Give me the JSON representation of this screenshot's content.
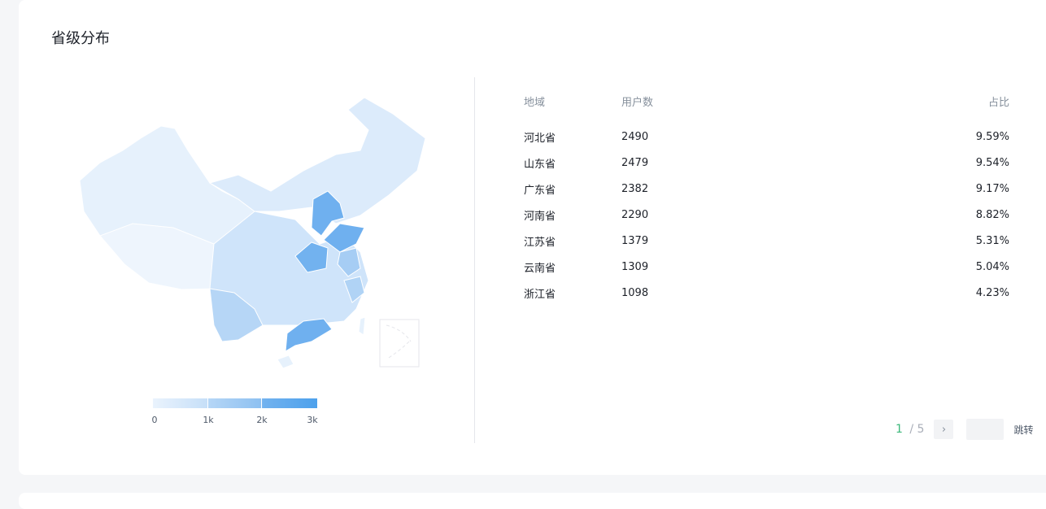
{
  "title": "省级分布",
  "legend": {
    "min_label": "0",
    "labels": [
      "0",
      "1k",
      "2k",
      "3k"
    ],
    "range": [
      0,
      3000
    ],
    "colors": [
      "#eaf3fd",
      "#4da1ec"
    ]
  },
  "table": {
    "headers": [
      "地域",
      "用户数",
      "占比"
    ],
    "rows": [
      {
        "region": "河北省",
        "users": "2490",
        "ratio": "9.59%"
      },
      {
        "region": "山东省",
        "users": "2479",
        "ratio": "9.54%"
      },
      {
        "region": "广东省",
        "users": "2382",
        "ratio": "9.17%"
      },
      {
        "region": "河南省",
        "users": "2290",
        "ratio": "8.82%"
      },
      {
        "region": "江苏省",
        "users": "1379",
        "ratio": "5.31%"
      },
      {
        "region": "云南省",
        "users": "1309",
        "ratio": "5.04%"
      },
      {
        "region": "浙江省",
        "users": "1098",
        "ratio": "4.23%"
      }
    ]
  },
  "pagination": {
    "current": "1",
    "separator": "/",
    "total": "5",
    "jump_label": "跳转",
    "next_icon": "chevron-right-icon"
  }
}
